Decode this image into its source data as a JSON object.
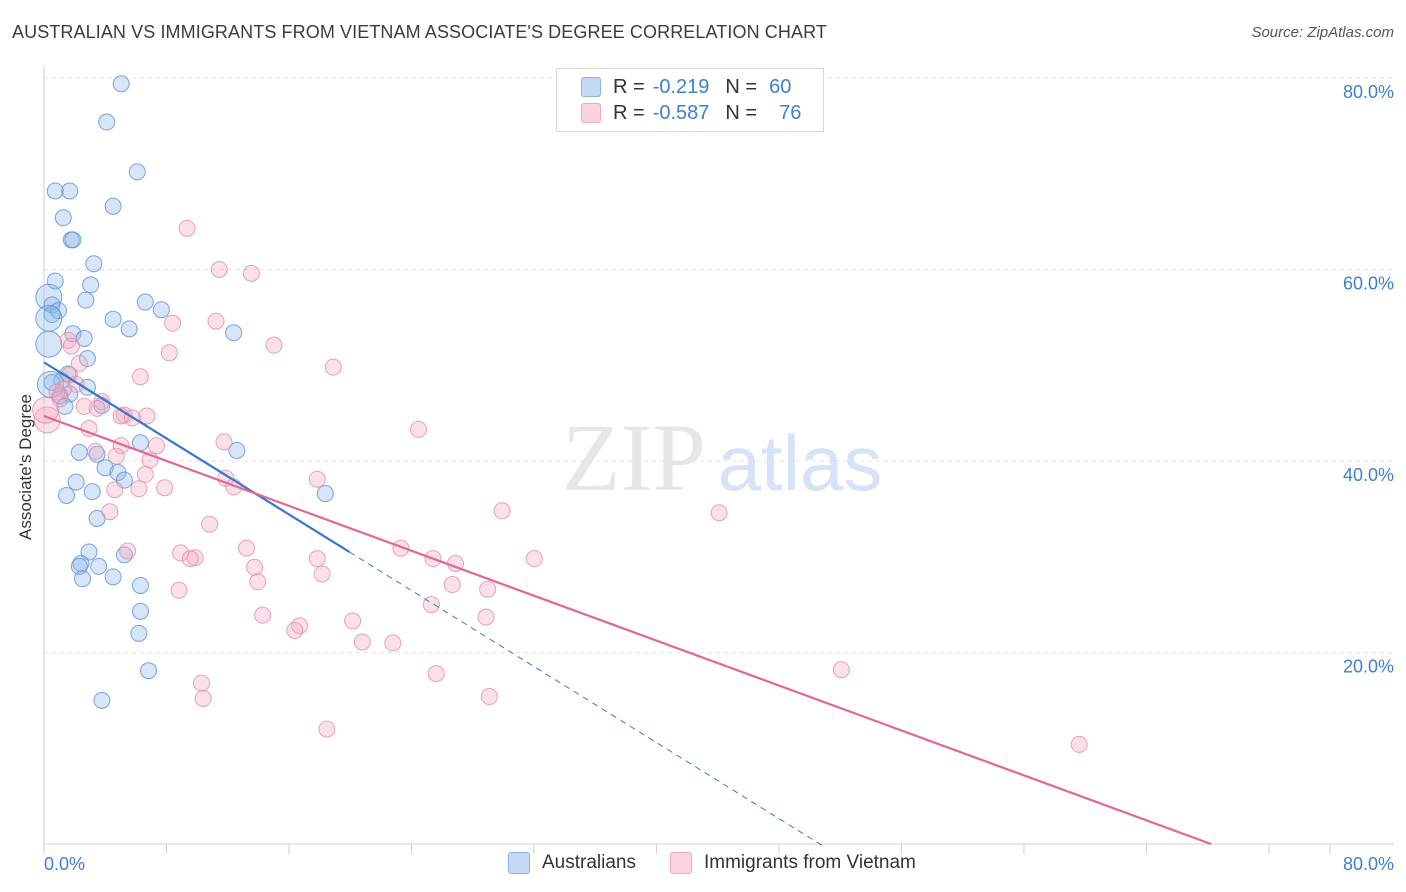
{
  "title": "AUSTRALIAN VS IMMIGRANTS FROM VIETNAM ASSOCIATE'S DEGREE CORRELATION CHART",
  "source": "Source: ZipAtlas.com",
  "watermark": {
    "zip": "ZIP",
    "atlas": "atlas"
  },
  "legend_top": {
    "rows": [
      {
        "r_label": "R =",
        "r_value": "-0.219",
        "n_label": "N =",
        "n_value": "60",
        "color": "#8ab4e8"
      },
      {
        "r_label": "R =",
        "r_value": "-0.587",
        "n_label": "N =",
        "n_value": "76",
        "color": "#f2a8c0"
      }
    ]
  },
  "legend_bottom": [
    {
      "label": "Australians",
      "color": "#8ab4e8"
    },
    {
      "label": "Immigrants from Vietnam",
      "color": "#f2a8c0"
    }
  ],
  "chart_data": {
    "type": "scatter",
    "title": "AUSTRALIAN VS IMMIGRANTS FROM VIETNAM ASSOCIATE'S DEGREE CORRELATION CHART",
    "xlabel": "",
    "ylabel": "Associate's Degree",
    "xlim": [
      0,
      80
    ],
    "ylim": [
      0,
      80
    ],
    "x_tick_labels": [
      {
        "value": 0,
        "label": "0.0%"
      },
      {
        "value": 80,
        "label": "80.0%"
      }
    ],
    "y_tick_labels": [
      {
        "value": 20,
        "label": "20.0%"
      },
      {
        "value": 40,
        "label": "40.0%"
      },
      {
        "value": 60,
        "label": "60.0%"
      },
      {
        "value": 80,
        "label": "80.0%"
      }
    ],
    "x_minor_ticks": [
      0,
      7.62,
      15.24,
      22.86,
      30.48,
      38.1,
      45.72,
      53.34,
      60.96,
      68.58,
      76.2,
      80
    ],
    "grid": true,
    "series": [
      {
        "name": "Australians",
        "color": "#8ab4e8",
        "stroke": "#5a90d6",
        "trend": {
          "x0": 0,
          "y0": 50.3,
          "x1": 19,
          "y1": 30.5,
          "dash_to_x": 48.6,
          "line_color": "#3a76cc"
        },
        "points": [
          [
            4.8,
            79.4
          ],
          [
            3.9,
            75.4
          ],
          [
            5.8,
            70.2
          ],
          [
            0.7,
            68.2
          ],
          [
            1.6,
            68.2
          ],
          [
            4.3,
            66.6
          ],
          [
            1.2,
            65.4
          ],
          [
            1.7,
            63.1
          ],
          [
            1.8,
            63.1
          ],
          [
            3.1,
            60.6
          ],
          [
            0.7,
            58.8
          ],
          [
            2.9,
            58.4
          ],
          [
            0.3,
            57.1
          ],
          [
            2.6,
            56.8
          ],
          [
            6.3,
            56.6
          ],
          [
            0.5,
            56.3
          ],
          [
            7.3,
            55.8
          ],
          [
            0.9,
            55.7
          ],
          [
            0.5,
            55.3
          ],
          [
            0.3,
            54.9
          ],
          [
            4.3,
            54.8
          ],
          [
            5.3,
            53.8
          ],
          [
            11.8,
            53.4
          ],
          [
            1.8,
            53.3
          ],
          [
            2.5,
            52.8
          ],
          [
            0.3,
            52.2
          ],
          [
            2.7,
            50.7
          ],
          [
            1.5,
            49.1
          ],
          [
            1.1,
            48.4
          ],
          [
            0.5,
            48.2
          ],
          [
            2.7,
            47.7
          ],
          [
            1.6,
            47.0
          ],
          [
            1.0,
            46.8
          ],
          [
            3.6,
            45.8
          ],
          [
            1.3,
            45.7
          ],
          [
            6.0,
            41.9
          ],
          [
            12.0,
            41.1
          ],
          [
            2.2,
            40.9
          ],
          [
            3.3,
            40.7
          ],
          [
            3.8,
            39.3
          ],
          [
            4.6,
            38.8
          ],
          [
            5.0,
            38.0
          ],
          [
            2.0,
            37.8
          ],
          [
            17.5,
            36.6
          ],
          [
            3.0,
            36.8
          ],
          [
            1.4,
            36.4
          ],
          [
            3.3,
            34.0
          ],
          [
            2.8,
            30.5
          ],
          [
            5.0,
            30.2
          ],
          [
            2.3,
            29.3
          ],
          [
            3.4,
            29.0
          ],
          [
            2.2,
            29.0
          ],
          [
            4.3,
            27.9
          ],
          [
            2.4,
            27.7
          ],
          [
            6.0,
            27.0
          ],
          [
            6.0,
            24.3
          ],
          [
            5.9,
            22.0
          ],
          [
            6.5,
            18.1
          ],
          [
            3.6,
            15.0
          ],
          [
            0.4,
            48.0
          ]
        ]
      },
      {
        "name": "Immigrants from Vietnam",
        "color": "#f2a8c0",
        "stroke": "#e88aa8",
        "trend": {
          "x0": 0,
          "y0": 44.7,
          "x1": 72.6,
          "y1": 0,
          "line_color": "#e06892"
        },
        "points": [
          [
            8.9,
            64.3
          ],
          [
            10.9,
            60.0
          ],
          [
            12.9,
            59.6
          ],
          [
            8.0,
            54.4
          ],
          [
            10.7,
            54.6
          ],
          [
            14.3,
            52.1
          ],
          [
            1.5,
            52.6
          ],
          [
            1.7,
            52.0
          ],
          [
            7.8,
            51.3
          ],
          [
            2.2,
            50.2
          ],
          [
            18.0,
            49.8
          ],
          [
            6.0,
            48.8
          ],
          [
            1.6,
            49.0
          ],
          [
            2.0,
            48.0
          ],
          [
            1.2,
            47.5
          ],
          [
            0.8,
            47.2
          ],
          [
            3.6,
            46.2
          ],
          [
            1.0,
            46.5
          ],
          [
            2.5,
            45.7
          ],
          [
            3.3,
            45.5
          ],
          [
            5.0,
            44.8
          ],
          [
            6.4,
            44.7
          ],
          [
            4.8,
            44.7
          ],
          [
            5.5,
            44.5
          ],
          [
            0.2,
            44.3
          ],
          [
            2.8,
            43.4
          ],
          [
            23.3,
            43.3
          ],
          [
            11.2,
            42.0
          ],
          [
            7.0,
            41.6
          ],
          [
            4.8,
            41.6
          ],
          [
            3.2,
            41.0
          ],
          [
            6.6,
            40.1
          ],
          [
            4.5,
            40.5
          ],
          [
            6.3,
            38.6
          ],
          [
            11.3,
            38.2
          ],
          [
            17.0,
            38.1
          ],
          [
            11.8,
            37.3
          ],
          [
            7.5,
            37.2
          ],
          [
            5.9,
            37.1
          ],
          [
            4.4,
            37.0
          ],
          [
            4.1,
            34.7
          ],
          [
            28.5,
            34.8
          ],
          [
            42.0,
            34.6
          ],
          [
            10.3,
            33.4
          ],
          [
            12.6,
            30.9
          ],
          [
            22.2,
            30.9
          ],
          [
            8.5,
            30.4
          ],
          [
            5.2,
            30.6
          ],
          [
            9.4,
            29.9
          ],
          [
            9.1,
            29.8
          ],
          [
            24.2,
            29.8
          ],
          [
            17.0,
            29.8
          ],
          [
            25.6,
            29.3
          ],
          [
            30.5,
            29.8
          ],
          [
            13.1,
            28.9
          ],
          [
            17.3,
            28.2
          ],
          [
            13.3,
            27.4
          ],
          [
            25.4,
            27.1
          ],
          [
            27.6,
            26.6
          ],
          [
            8.4,
            26.5
          ],
          [
            24.1,
            25.0
          ],
          [
            13.6,
            23.9
          ],
          [
            27.5,
            23.7
          ],
          [
            19.2,
            23.3
          ],
          [
            15.9,
            22.8
          ],
          [
            15.6,
            22.3
          ],
          [
            19.8,
            21.1
          ],
          [
            21.7,
            21.0
          ],
          [
            49.6,
            18.2
          ],
          [
            24.4,
            17.8
          ],
          [
            9.8,
            16.8
          ],
          [
            9.9,
            15.2
          ],
          [
            27.7,
            15.4
          ],
          [
            17.6,
            12.0
          ],
          [
            64.4,
            10.4
          ],
          [
            0.1,
            45.3
          ]
        ]
      }
    ]
  }
}
